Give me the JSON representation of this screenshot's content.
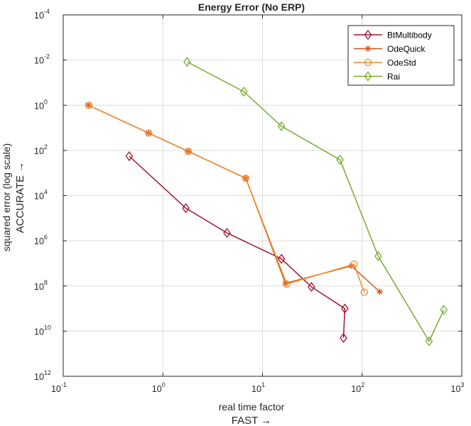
{
  "chart_data": {
    "type": "line",
    "title": "Energy Error (No ERP)",
    "xlabel_line1": "real time factor",
    "xlabel_line2": "FAST →",
    "ylabel_line1": "squared error (log scale)",
    "ylabel_line2": "ACCURATE →",
    "x_scale": "log",
    "y_scale": "log",
    "y_direction": "reversed",
    "xlim": [
      0.1,
      1000
    ],
    "ylim": [
      0.0001,
      1000000000000.0
    ],
    "x_ticks": [
      {
        "value": 0.1,
        "base": "10",
        "exp": "-1"
      },
      {
        "value": 1,
        "base": "10",
        "exp": "0"
      },
      {
        "value": 10,
        "base": "10",
        "exp": "1"
      },
      {
        "value": 100,
        "base": "10",
        "exp": "2"
      },
      {
        "value": 1000,
        "base": "10",
        "exp": "3"
      }
    ],
    "y_ticks": [
      {
        "value": 0.0001,
        "base": "10",
        "exp": "-4"
      },
      {
        "value": 0.01,
        "base": "10",
        "exp": "-2"
      },
      {
        "value": 1.0,
        "base": "10",
        "exp": "0"
      },
      {
        "value": 100.0,
        "base": "10",
        "exp": "2"
      },
      {
        "value": 10000.0,
        "base": "10",
        "exp": "4"
      },
      {
        "value": 1000000.0,
        "base": "10",
        "exp": "6"
      },
      {
        "value": 100000000.0,
        "base": "10",
        "exp": "8"
      },
      {
        "value": 10000000000.0,
        "base": "10",
        "exp": "10"
      },
      {
        "value": 1000000000000.0,
        "base": "10",
        "exp": "12"
      }
    ],
    "grid": true,
    "legend_position": "top-right",
    "series": [
      {
        "name": "BtMultibody",
        "color": "#a2142f",
        "marker": "diamond",
        "x": [
          0.46,
          1.7,
          4.4,
          15.5,
          31,
          67,
          65
        ],
        "y": [
          180,
          36000,
          450000,
          6300000.0,
          110000000.0,
          1000000000.0,
          20000000000.0
        ]
      },
      {
        "name": "OdeQuick",
        "color": "#d95319",
        "marker": "asterisk",
        "x": [
          0.18,
          0.72,
          1.8,
          6.8,
          17,
          78,
          150
        ],
        "y": [
          1.0,
          17,
          110,
          1700,
          76000000.0,
          13000000.0,
          180000000.0
        ]
      },
      {
        "name": "OdeStd",
        "color": "#ed8a2b",
        "marker": "circle",
        "x": [
          0.18,
          0.72,
          1.8,
          6.8,
          17.5,
          83,
          105
        ],
        "y": [
          1.0,
          17,
          110,
          1700,
          82000000.0,
          11000000.0,
          190000000.0
        ]
      },
      {
        "name": "Rai",
        "color": "#77ac30",
        "marker": "diamond",
        "x": [
          1.75,
          6.5,
          15.5,
          60,
          145,
          470,
          660
        ],
        "y": [
          0.012,
          0.25,
          8.5,
          260,
          4800000.0,
          28000000000.0,
          1150000000.0
        ]
      }
    ]
  }
}
